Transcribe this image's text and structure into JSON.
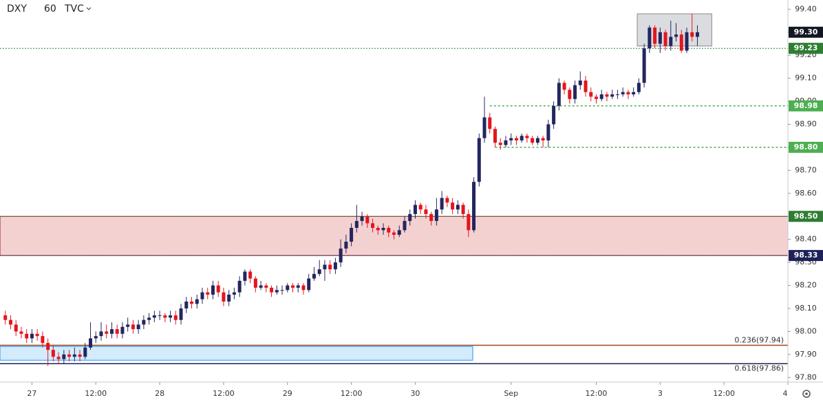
{
  "chart_data": {
    "type": "candlestick",
    "symbol": "DXY",
    "interval": "60",
    "source": "TVC",
    "up_color": "#23265e",
    "down_color": "#e3161d",
    "xlim": [
      -6,
      142
    ],
    "xticks": [
      {
        "value": 0,
        "label": "27"
      },
      {
        "value": 12,
        "label": "12:00"
      },
      {
        "value": 24,
        "label": "28"
      },
      {
        "value": 36,
        "label": "12:00"
      },
      {
        "value": 48,
        "label": "29"
      },
      {
        "value": 60,
        "label": "12:00"
      },
      {
        "value": 72,
        "label": "30"
      },
      {
        "value": 90,
        "label": "Sep"
      },
      {
        "value": 106,
        "label": "12:00"
      },
      {
        "value": 118,
        "label": "3"
      },
      {
        "value": 130,
        "label": "12:00"
      },
      {
        "value": 142,
        "label": "4"
      }
    ],
    "ylim": [
      97.78,
      99.44
    ],
    "yticks": [
      {
        "value": 97.8,
        "label": "97.80"
      },
      {
        "value": 97.9,
        "label": "97.90"
      },
      {
        "value": 98.0,
        "label": "98.00"
      },
      {
        "value": 98.1,
        "label": "98.10"
      },
      {
        "value": 98.2,
        "label": "98.20"
      },
      {
        "value": 98.3,
        "label": "98.30"
      },
      {
        "value": 98.4,
        "label": "98.40"
      },
      {
        "value": 98.5,
        "label": "98.50"
      },
      {
        "value": 98.6,
        "label": "98.60"
      },
      {
        "value": 98.7,
        "label": "98.70"
      },
      {
        "value": 98.8,
        "label": "98.80"
      },
      {
        "value": 98.9,
        "label": "98.90"
      },
      {
        "value": 99.0,
        "label": "99.00"
      },
      {
        "value": 99.1,
        "label": "99.10"
      },
      {
        "value": 99.2,
        "label": "99.20"
      },
      {
        "value": 99.3,
        "label": "99.30"
      },
      {
        "value": 99.4,
        "label": "99.40"
      }
    ],
    "x": [
      -5,
      -4,
      -3,
      -2,
      -1,
      0,
      1,
      2,
      3,
      4,
      5,
      6,
      7,
      8,
      9,
      10,
      11,
      12,
      13,
      14,
      15,
      16,
      17,
      18,
      19,
      20,
      21,
      22,
      23,
      24,
      25,
      26,
      27,
      28,
      29,
      30,
      31,
      32,
      33,
      34,
      35,
      36,
      37,
      38,
      39,
      40,
      41,
      42,
      43,
      44,
      45,
      46,
      47,
      48,
      49,
      50,
      51,
      52,
      53,
      54,
      55,
      56,
      57,
      58,
      59,
      60,
      61,
      62,
      63,
      64,
      65,
      66,
      67,
      68,
      69,
      70,
      71,
      72,
      73,
      74,
      75,
      76,
      77,
      78,
      79,
      80,
      81,
      82,
      83,
      84,
      85,
      86,
      87,
      88,
      89,
      90,
      91,
      92,
      93,
      94,
      95,
      96,
      97,
      98,
      99,
      100,
      101,
      102,
      103,
      104,
      105,
      106,
      107,
      108,
      109,
      110,
      111,
      112,
      113,
      114,
      115,
      116,
      117,
      118,
      119,
      120,
      121,
      122,
      123,
      124,
      125
    ],
    "open": [
      98.07,
      98.05,
      98.03,
      98.0,
      97.99,
      97.97,
      97.99,
      97.98,
      97.95,
      97.92,
      97.89,
      97.88,
      97.9,
      97.89,
      97.9,
      97.89,
      97.93,
      97.97,
      97.98,
      98.0,
      97.99,
      98.01,
      97.99,
      98.02,
      98.03,
      98.01,
      98.03,
      98.05,
      98.06,
      98.07,
      98.07,
      98.06,
      98.07,
      98.05,
      98.1,
      98.13,
      98.12,
      98.14,
      98.17,
      98.16,
      98.2,
      98.17,
      98.13,
      98.16,
      98.17,
      98.22,
      98.26,
      98.23,
      98.19,
      98.2,
      98.19,
      98.17,
      98.18,
      98.18,
      98.2,
      98.19,
      98.2,
      98.18,
      98.23,
      98.25,
      98.27,
      98.29,
      98.27,
      98.3,
      98.36,
      98.39,
      98.45,
      98.48,
      98.5,
      98.47,
      98.45,
      98.44,
      98.45,
      98.43,
      98.42,
      98.44,
      98.48,
      98.51,
      98.55,
      98.53,
      98.51,
      98.48,
      98.53,
      98.58,
      98.56,
      98.53,
      98.55,
      98.51,
      98.44,
      98.65,
      98.84,
      98.93,
      98.88,
      98.82,
      98.81,
      98.83,
      98.84,
      98.83,
      98.85,
      98.84,
      98.82,
      98.84,
      98.83,
      98.9,
      98.98,
      99.08,
      99.05,
      99.01,
      99.07,
      99.09,
      99.04,
      99.02,
      99.01,
      99.03,
      99.02,
      99.03,
      99.03,
      99.04,
      99.03,
      99.04,
      99.08,
      99.23,
      99.32,
      99.25,
      99.3,
      99.24,
      99.28,
      99.29,
      99.22,
      99.3,
      99.28
    ],
    "high": [
      98.09,
      98.07,
      98.05,
      98.02,
      98.01,
      98.01,
      98.01,
      98.0,
      97.97,
      97.94,
      97.91,
      97.92,
      97.92,
      97.93,
      97.92,
      97.95,
      98.04,
      98.0,
      98.04,
      98.03,
      98.04,
      98.03,
      98.04,
      98.06,
      98.05,
      98.05,
      98.07,
      98.08,
      98.09,
      98.09,
      98.08,
      98.09,
      98.09,
      98.12,
      98.15,
      98.15,
      98.16,
      98.19,
      98.19,
      98.22,
      98.22,
      98.19,
      98.18,
      98.19,
      98.24,
      98.27,
      98.27,
      98.24,
      98.22,
      98.21,
      98.2,
      98.2,
      98.2,
      98.21,
      98.21,
      98.21,
      98.21,
      98.25,
      98.28,
      98.31,
      98.31,
      98.31,
      98.32,
      98.4,
      98.42,
      98.47,
      98.55,
      98.52,
      98.51,
      98.49,
      98.46,
      98.47,
      98.46,
      98.44,
      98.46,
      98.5,
      98.53,
      98.57,
      98.56,
      98.55,
      98.52,
      98.58,
      98.61,
      98.59,
      98.58,
      98.57,
      98.56,
      98.53,
      98.67,
      98.86,
      99.02,
      98.95,
      98.89,
      98.84,
      98.85,
      98.86,
      98.85,
      98.86,
      98.86,
      98.85,
      98.85,
      98.85,
      98.92,
      99.0,
      99.1,
      99.09,
      99.06,
      99.09,
      99.13,
      99.11,
      99.06,
      99.03,
      99.05,
      99.04,
      99.05,
      99.05,
      99.06,
      99.05,
      99.06,
      99.1,
      99.25,
      99.33,
      99.33,
      99.32,
      99.31,
      99.35,
      99.34,
      99.31,
      99.32,
      99.38,
      99.33
    ],
    "low": [
      98.03,
      98.01,
      97.98,
      97.97,
      97.95,
      97.95,
      97.96,
      97.93,
      97.85,
      97.87,
      97.86,
      97.86,
      97.87,
      97.87,
      97.87,
      97.88,
      97.92,
      97.95,
      97.96,
      97.97,
      97.97,
      97.97,
      97.97,
      98.0,
      97.99,
      97.99,
      98.01,
      98.03,
      98.04,
      98.05,
      98.04,
      98.04,
      98.03,
      98.03,
      98.08,
      98.1,
      98.1,
      98.12,
      98.14,
      98.14,
      98.15,
      98.11,
      98.11,
      98.14,
      98.15,
      98.2,
      98.21,
      98.17,
      98.18,
      98.17,
      98.15,
      98.16,
      98.16,
      98.17,
      98.17,
      98.17,
      98.16,
      98.17,
      98.22,
      98.24,
      98.22,
      98.25,
      98.25,
      98.28,
      98.34,
      98.37,
      98.43,
      98.46,
      98.45,
      98.43,
      98.42,
      98.42,
      98.41,
      98.4,
      98.41,
      98.43,
      98.46,
      98.49,
      98.51,
      98.49,
      98.46,
      98.46,
      98.51,
      98.54,
      98.51,
      98.51,
      98.49,
      98.41,
      98.43,
      98.63,
      98.82,
      98.86,
      98.8,
      98.79,
      98.8,
      98.81,
      98.81,
      98.82,
      98.82,
      98.81,
      98.81,
      98.8,
      98.8,
      98.88,
      98.96,
      99.03,
      98.99,
      98.99,
      99.05,
      99.02,
      99.0,
      98.99,
      99.0,
      99.0,
      99.01,
      99.01,
      99.02,
      99.01,
      99.02,
      99.03,
      99.06,
      99.21,
      99.23,
      99.21,
      99.22,
      99.22,
      99.26,
      99.21,
      99.21,
      99.26,
      99.24
    ],
    "close": [
      98.05,
      98.03,
      98.0,
      97.99,
      97.97,
      97.99,
      97.98,
      97.95,
      97.92,
      97.89,
      97.88,
      97.9,
      97.89,
      97.9,
      97.89,
      97.93,
      97.97,
      97.98,
      98.0,
      97.99,
      98.01,
      97.99,
      98.02,
      98.03,
      98.01,
      98.03,
      98.05,
      98.06,
      98.07,
      98.07,
      98.06,
      98.07,
      98.05,
      98.1,
      98.13,
      98.12,
      98.14,
      98.17,
      98.16,
      98.2,
      98.17,
      98.13,
      98.16,
      98.17,
      98.22,
      98.26,
      98.23,
      98.19,
      98.2,
      98.19,
      98.17,
      98.18,
      98.18,
      98.2,
      98.19,
      98.2,
      98.18,
      98.23,
      98.25,
      98.27,
      98.29,
      98.27,
      98.3,
      98.36,
      98.39,
      98.45,
      98.48,
      98.5,
      98.47,
      98.45,
      98.44,
      98.45,
      98.43,
      98.42,
      98.44,
      98.48,
      98.51,
      98.55,
      98.53,
      98.51,
      98.48,
      98.53,
      98.58,
      98.56,
      98.53,
      98.55,
      98.51,
      98.44,
      98.65,
      98.84,
      98.93,
      98.88,
      98.82,
      98.81,
      98.83,
      98.84,
      98.83,
      98.85,
      98.84,
      98.82,
      98.84,
      98.83,
      98.9,
      98.98,
      99.08,
      99.05,
      99.01,
      99.07,
      99.09,
      99.04,
      99.02,
      99.01,
      99.03,
      99.02,
      99.03,
      99.03,
      99.04,
      99.03,
      99.04,
      99.08,
      99.23,
      99.32,
      99.25,
      99.3,
      99.24,
      99.28,
      99.29,
      99.22,
      99.3,
      99.28,
      99.3
    ],
    "zones": [
      {
        "from": 98.33,
        "to": 98.5,
        "x0": -6,
        "x1": 142,
        "fill": "#f2c9c9",
        "stroke": "#8b1a1a"
      },
      {
        "from": 97.875,
        "to": 97.935,
        "x0": -6,
        "x1": 82.8,
        "fill": "#cde8fb",
        "stroke": "#2196f3"
      },
      {
        "from": 99.24,
        "to": 99.38,
        "x0": 113.7,
        "x1": 127.7,
        "fill": "#d5d6da",
        "stroke": "#888"
      }
    ],
    "levels": [
      {
        "value": 99.23,
        "label": "99.23",
        "color": "#2e7d32",
        "start": -6,
        "dash": "2,2"
      },
      {
        "value": 98.98,
        "label": "98.98",
        "color": "#4caf50",
        "start": 86,
        "dash": "3,3"
      },
      {
        "value": 98.8,
        "label": "98.80",
        "color": "#4caf50",
        "start": 87,
        "dash": "3,3"
      },
      {
        "value": 98.5,
        "label": "98.50",
        "color": "#2e7d32",
        "start": -6,
        "dash": "1,1"
      },
      {
        "value": 98.33,
        "label": "98.33",
        "color": "#1e2159",
        "start": -6,
        "dash": "1,1"
      },
      {
        "value": 99.3,
        "label": "99.30",
        "color": "#131722",
        "start": null,
        "dash": null
      }
    ],
    "fib_lines": [
      {
        "value": 97.94,
        "label": "0.236(97.94)",
        "color": "#a0461e"
      },
      {
        "value": 97.86,
        "label": "0.618(97.86)",
        "color": "#1e2159",
        "text_color": "#3f51b5"
      }
    ]
  }
}
